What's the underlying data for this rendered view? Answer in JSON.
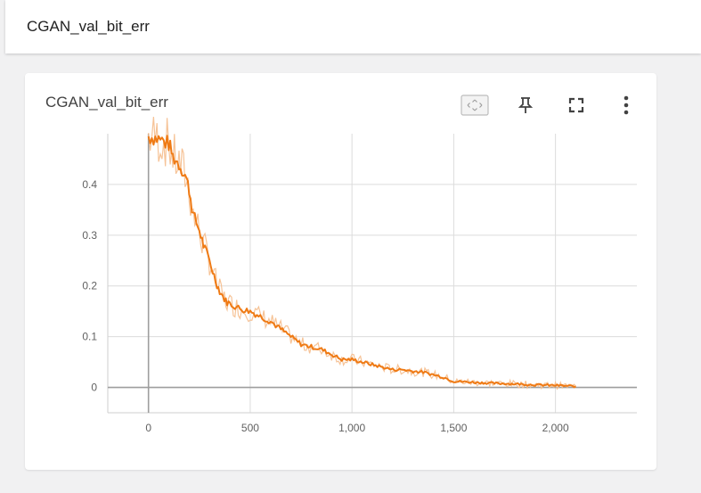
{
  "header": {
    "title": "CGAN_val_bit_err"
  },
  "card": {
    "title": "CGAN_val_bit_err",
    "tools": [
      {
        "name": "fit-domain-icon"
      },
      {
        "name": "pin-icon"
      },
      {
        "name": "fullscreen-icon"
      },
      {
        "name": "more-vert-icon"
      }
    ]
  },
  "colors": {
    "series": "#ef7a14",
    "raw": "#f5bc8c",
    "grid": "#dcdcdc",
    "axis": "#9e9e9e"
  },
  "chart_data": {
    "type": "line",
    "title": "",
    "xlabel": "",
    "ylabel": "",
    "xlim": [
      -200,
      2400
    ],
    "ylim": [
      -0.05,
      0.5
    ],
    "xticks": [
      0,
      500,
      1000,
      1500,
      2000
    ],
    "xtick_labels": [
      "0",
      "500",
      "1,000",
      "1,500",
      "2,000"
    ],
    "yticks": [
      0,
      0.1,
      0.2,
      0.3,
      0.4
    ],
    "ytick_labels": [
      "0",
      "0.1",
      "0.2",
      "0.3",
      "0.4"
    ],
    "grid": true,
    "series": [
      {
        "x": [
          0,
          50,
          100,
          120,
          150,
          180,
          200,
          220,
          250,
          270,
          300,
          330,
          350,
          380,
          400,
          450,
          500,
          550,
          600,
          650,
          700,
          750,
          800,
          850,
          900,
          950,
          1000,
          1050,
          1100,
          1150,
          1200,
          1250,
          1300,
          1350,
          1400,
          1450,
          1500,
          1600,
          1700,
          1800,
          1900,
          2000,
          2050,
          2100
        ],
        "y": [
          0.495,
          0.49,
          0.48,
          0.455,
          0.44,
          0.42,
          0.39,
          0.34,
          0.31,
          0.28,
          0.25,
          0.21,
          0.19,
          0.17,
          0.165,
          0.155,
          0.15,
          0.14,
          0.13,
          0.115,
          0.1,
          0.085,
          0.08,
          0.075,
          0.065,
          0.055,
          0.055,
          0.05,
          0.045,
          0.04,
          0.035,
          0.035,
          0.032,
          0.03,
          0.025,
          0.02,
          0.012,
          0.01,
          0.008,
          0.007,
          0.005,
          0.004,
          0.003,
          0.002
        ]
      }
    ]
  }
}
